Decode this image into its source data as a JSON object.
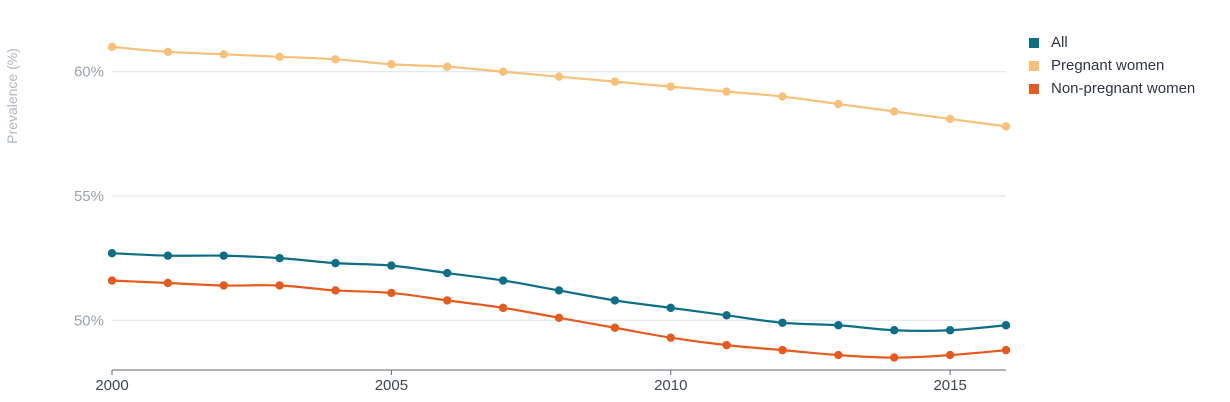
{
  "chart_data": {
    "type": "line",
    "ylabel": "Prevalence (%)",
    "xlabel": "",
    "x": [
      2000,
      2001,
      2002,
      2003,
      2004,
      2005,
      2006,
      2007,
      2008,
      2009,
      2010,
      2011,
      2012,
      2013,
      2014,
      2015,
      2016
    ],
    "xlim": [
      2000,
      2016
    ],
    "ylim": [
      48,
      62
    ],
    "x_ticks": [
      2000,
      2005,
      2010,
      2015
    ],
    "x_tick_labels": [
      "2000",
      "2005",
      "2010",
      "2015"
    ],
    "y_ticks": [
      50,
      55,
      60
    ],
    "y_tick_labels": [
      "50%",
      "55%",
      "60%"
    ],
    "grid": "horizontal",
    "legend_position": "top-right",
    "series": [
      {
        "name": "All",
        "color": "#0e6e86",
        "values": [
          52.7,
          52.6,
          52.6,
          52.5,
          52.3,
          52.2,
          51.9,
          51.6,
          51.2,
          50.8,
          50.5,
          50.2,
          49.9,
          49.8,
          49.6,
          49.6,
          49.8
        ]
      },
      {
        "name": "Pregnant women",
        "color": "#f9c07a",
        "values": [
          61.0,
          60.8,
          60.7,
          60.6,
          60.5,
          60.3,
          60.2,
          60.0,
          59.8,
          59.6,
          59.4,
          59.2,
          59.0,
          58.7,
          58.4,
          58.1,
          57.8
        ]
      },
      {
        "name": "Non-pregnant women",
        "color": "#e55a1f",
        "values": [
          51.6,
          51.5,
          51.4,
          51.4,
          51.2,
          51.1,
          50.8,
          50.5,
          50.1,
          49.7,
          49.3,
          49.0,
          48.8,
          48.6,
          48.5,
          48.6,
          48.8
        ]
      }
    ]
  }
}
